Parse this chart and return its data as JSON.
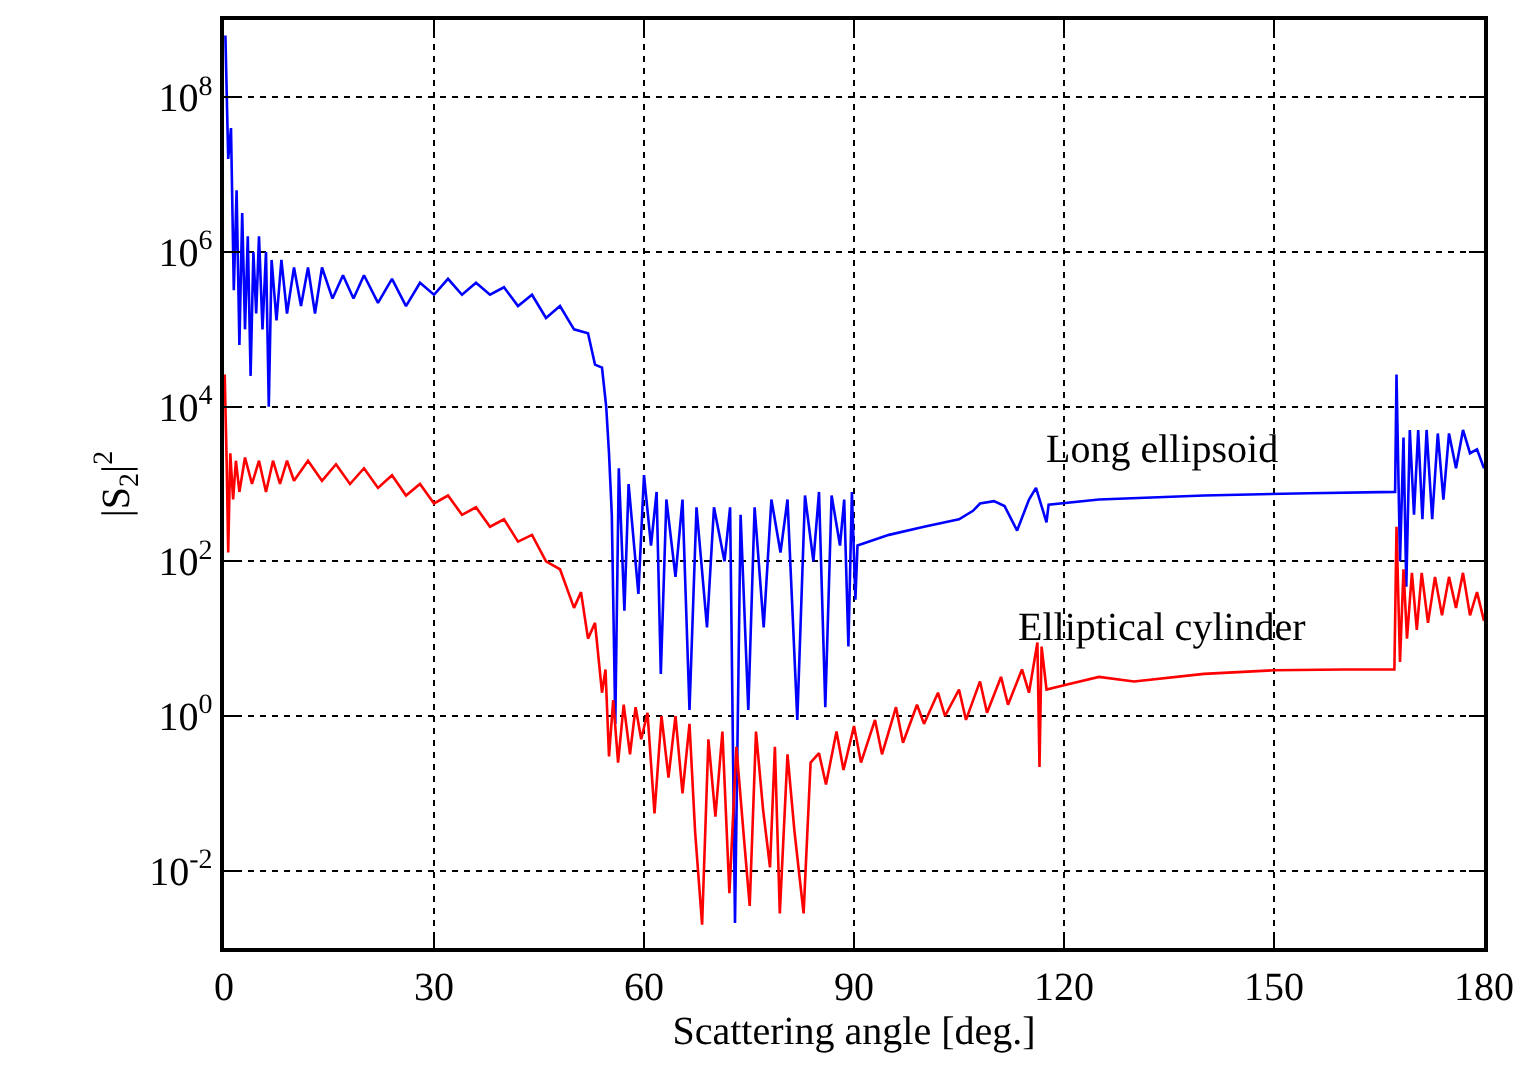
{
  "chart_data": {
    "type": "line",
    "xlabel": "Scattering angle [deg.]",
    "ylabel": "|S$_{2}$|$^{2}$",
    "log": "y",
    "grid": true,
    "legend": false,
    "marker": "none",
    "line_style": "solid",
    "xlim": [
      0,
      180
    ],
    "xticks": [
      0,
      30,
      60,
      90,
      120,
      150,
      180
    ],
    "ylim": [
      0.001,
      1000000000
    ],
    "yticks": [
      {
        "value": 0.01,
        "label": "10$^{-2}$"
      },
      {
        "value": 1,
        "label": "10$^{0}$"
      },
      {
        "value": 100,
        "label": "10$^{2}$"
      },
      {
        "value": 10000,
        "label": "10$^{4}$"
      },
      {
        "value": 1000000,
        "label": "10$^{6}$"
      },
      {
        "value": 100000000,
        "label": "10$^{8}$"
      }
    ],
    "series": [
      {
        "name": "Long ellipsoid",
        "color": "#0000ff",
        "x": [
          0.2,
          0.6,
          1.0,
          1.4,
          1.8,
          2.2,
          2.6,
          3.0,
          3.4,
          3.8,
          4.2,
          4.6,
          5.0,
          5.5,
          6.0,
          6.4,
          6.8,
          7.5,
          8.2,
          9,
          10,
          11,
          12,
          13,
          14,
          15.5,
          17,
          18.5,
          20,
          22,
          24,
          26,
          28,
          30,
          32,
          34,
          36,
          38,
          40,
          42,
          44,
          46,
          48,
          50,
          52,
          53,
          54,
          54.6,
          55,
          55.4,
          55.9,
          56.4,
          57.2,
          57.8,
          59.2,
          60,
          61,
          61.8,
          62.4,
          63.2,
          64.5,
          65.5,
          66.5,
          67.5,
          69,
          70,
          71.5,
          72.3,
          73,
          73.8,
          74.9,
          75.8,
          77.1,
          78.2,
          79.5,
          80.5,
          81.9,
          83,
          84.2,
          85,
          85.9,
          86.8,
          88,
          88.6,
          89.2,
          89.7,
          90.2,
          90.5,
          95,
          100,
          105,
          107,
          108,
          110,
          111.5,
          113.3,
          115,
          116,
          117.5,
          117.8,
          125,
          140,
          155,
          167.3,
          167.5,
          168,
          168.5,
          168.9,
          169.4,
          170,
          170.6,
          171.2,
          171.8,
          172.6,
          173.4,
          174.2,
          175,
          176,
          177,
          178,
          179,
          180
        ],
        "values": [
          630000000,
          16000000,
          40000000,
          320000,
          6300000,
          63000,
          3200000,
          100000,
          1600000,
          25000,
          1000000,
          160000,
          1600000,
          100000,
          1000000,
          10000,
          790000,
          130000,
          790000,
          160000,
          630000,
          200000,
          630000,
          160000,
          630000,
          250000,
          500000,
          250000,
          500000,
          220000,
          450000,
          200000,
          400000,
          280000,
          450000,
          280000,
          400000,
          280000,
          350000,
          200000,
          280000,
          140000,
          200000,
          100000,
          89000,
          35000,
          32000,
          10000,
          2500,
          400,
          0.79,
          1600,
          23,
          1000,
          38,
          1300,
          160,
          790,
          3.5,
          630,
          63,
          630,
          1.2,
          500,
          14,
          500,
          100,
          500,
          0.0021,
          400,
          1.2,
          500,
          14,
          630,
          130,
          630,
          0.89,
          710,
          100,
          790,
          1.3,
          710,
          160,
          630,
          7.9,
          790,
          32,
          160,
          220,
          280,
          350,
          450,
          560,
          600,
          520,
          250,
          630,
          890,
          320,
          540,
          630,
          710,
          760,
          790,
          26000,
          100,
          4000,
          47,
          5000,
          400,
          5000,
          350,
          5000,
          350,
          4500,
          630,
          4500,
          1600,
          5000,
          2500,
          2800,
          1600
        ]
      },
      {
        "name": "Elliptical cylinder",
        "color": "#ff0000",
        "x": [
          0.1,
          0.4,
          0.6,
          0.9,
          1.3,
          1.7,
          2.2,
          3,
          4,
          5,
          6,
          7,
          8,
          9,
          10,
          12,
          14,
          16,
          18,
          20,
          22,
          24,
          26,
          28,
          30,
          32,
          34,
          36,
          38,
          40,
          42,
          44,
          46,
          48,
          50,
          51,
          52,
          53,
          54,
          54.5,
          55,
          55.6,
          56.3,
          57.1,
          58,
          58.8,
          59.6,
          60.5,
          61.5,
          62.5,
          63.5,
          64.5,
          65.5,
          66.5,
          67.3,
          68.3,
          69.2,
          70.2,
          71.2,
          72.2,
          73.2,
          74.2,
          75.1,
          76,
          77,
          78,
          78.7,
          79.4,
          80.5,
          81.5,
          82.8,
          83.8,
          85,
          86,
          87.5,
          88.5,
          90,
          91,
          93,
          94,
          96,
          97,
          99,
          100,
          102,
          103,
          105,
          106,
          108,
          109,
          111,
          112,
          114,
          115,
          116.2,
          116.5,
          116.8,
          117.5,
          120,
          125,
          130,
          140,
          150,
          160,
          167.2,
          167.5,
          168,
          168.5,
          169,
          169.7,
          170.4,
          171.1,
          172,
          173,
          174,
          175,
          176,
          177,
          178,
          179,
          180
        ],
        "values": [
          26000,
          1600,
          130,
          2500,
          630,
          2000,
          790,
          2200,
          1000,
          2000,
          790,
          2000,
          1000,
          2000,
          1100,
          2000,
          1100,
          1800,
          1000,
          1600,
          890,
          1300,
          710,
          1000,
          560,
          710,
          400,
          500,
          280,
          350,
          180,
          220,
          100,
          79,
          25,
          40,
          10,
          16,
          2,
          4,
          0.3,
          1.6,
          0.25,
          1.4,
          0.32,
          1.3,
          0.5,
          1.1,
          0.055,
          1,
          0.16,
          1,
          0.1,
          0.79,
          0.032,
          0.002,
          0.5,
          0.05,
          0.63,
          0.0051,
          0.4,
          0.032,
          0.0035,
          0.63,
          0.063,
          0.011,
          0.4,
          0.0028,
          0.32,
          0.032,
          0.0028,
          0.25,
          0.33,
          0.13,
          0.63,
          0.2,
          0.74,
          0.25,
          0.89,
          0.32,
          1.3,
          0.45,
          1.4,
          0.79,
          2,
          1,
          2.2,
          0.89,
          2.8,
          1.1,
          3.2,
          1.4,
          4,
          2,
          8.9,
          0.22,
          7.9,
          2.2,
          2.5,
          3.2,
          2.8,
          3.5,
          3.9,
          4,
          4,
          280,
          5,
          79,
          10,
          71,
          13,
          71,
          16,
          63,
          20,
          63,
          25,
          71,
          20,
          40,
          17
        ]
      }
    ]
  }
}
